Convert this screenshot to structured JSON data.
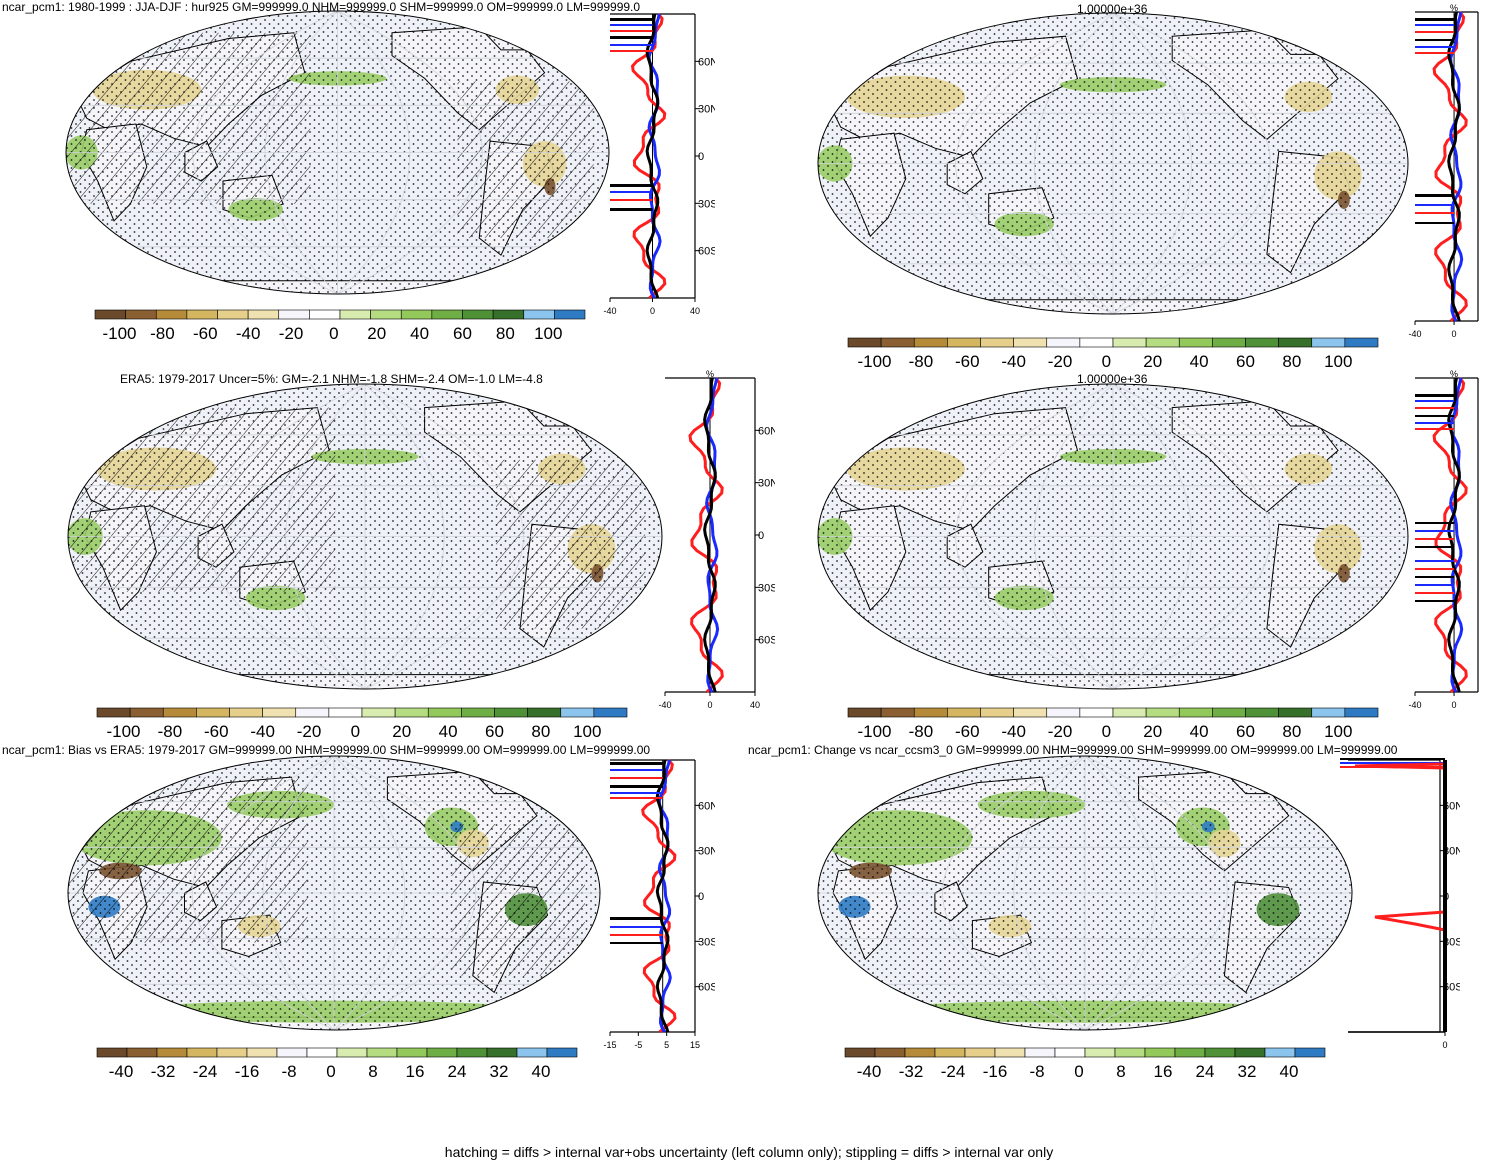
{
  "palette": {
    "bar11": [
      "#6b4a2b",
      "#8a5f32",
      "#b58b3a",
      "#d4b560",
      "#e6cf8a",
      "#f0e2b0",
      "#f5f5fb",
      "#ffffff",
      "#d8ecb0",
      "#b5dc80",
      "#93c85a",
      "#6fae45",
      "#4f9136",
      "#37702a",
      "#8bc4ec",
      "#2e7bc4"
    ],
    "map": {
      "ocean": "#eef1f7",
      "land": "#f4f4f9",
      "tan": "#e6d596",
      "brown": "#7a5230",
      "green": "#99cc66",
      "dgreen": "#4f8f3a",
      "blue": "#2e7bc4"
    },
    "lines": {
      "red": "#ff1e1e",
      "blue": "#1a2aff",
      "black": "#000000",
      "purple": "#8b1fa8"
    }
  },
  "panels": [
    {
      "id": "p1",
      "title": "ncar_pcm1: 1980-1999 : JJA-DJF : hur925 GM=999999.0 NHM=999999.0 SHM=999999.0 OM=999999.0 LM=999999.0",
      "lat_ticks": [
        "60N",
        "30N",
        "0",
        "30S",
        "60S"
      ],
      "x_ticks": [
        "-40",
        "0",
        "40"
      ],
      "pct_label": "",
      "cbar_labels": [
        "-100",
        "-80",
        "-60",
        "-40",
        "-20",
        "0",
        "20",
        "40",
        "60",
        "80",
        "100"
      ]
    },
    {
      "id": "p2",
      "title": "1.00000e+36",
      "lat_ticks": [],
      "x_ticks": [
        "-40",
        "0"
      ],
      "pct_label": "%",
      "cbar_labels": [
        "-100",
        "-80",
        "-60",
        "-40",
        "-20",
        "0",
        "20",
        "40",
        "60",
        "80",
        "100"
      ]
    },
    {
      "id": "p3",
      "title": "ERA5: 1979-2017 Uncer=5%: GM=-2.1 NHM=-1.8 SHM=-2.4 OM=-1.0 LM=-4.8",
      "lat_ticks": [
        "60N",
        "30N",
        "0",
        "30S",
        "60S"
      ],
      "x_ticks": [
        "-40",
        "0",
        "40"
      ],
      "pct_label": "%",
      "cbar_labels": [
        "-100",
        "-80",
        "-60",
        "-40",
        "-20",
        "0",
        "20",
        "40",
        "60",
        "80",
        "100"
      ]
    },
    {
      "id": "p4",
      "title": "1.00000e+36",
      "lat_ticks": [],
      "x_ticks": [
        "-40",
        "0"
      ],
      "pct_label": "%",
      "cbar_labels": [
        "-100",
        "-80",
        "-60",
        "-40",
        "-20",
        "0",
        "20",
        "40",
        "60",
        "80",
        "100"
      ]
    },
    {
      "id": "p5",
      "title": "ncar_pcm1: Bias vs ERA5: 1979-2017 GM=999999.00 NHM=999999.00 SHM=999999.00 OM=999999.00 LM=999999.00",
      "lat_ticks": [
        "60N",
        "30N",
        "0",
        "30S",
        "60S"
      ],
      "x_ticks": [
        "-15",
        "-5",
        "5",
        "15"
      ],
      "pct_label": "",
      "cbar_labels": [
        "-40",
        "-32",
        "-24",
        "-16",
        "-8",
        "0",
        "8",
        "16",
        "24",
        "32",
        "40"
      ]
    },
    {
      "id": "p6",
      "title": "ncar_pcm1: Change vs ncar_ccsm3_0 GM=999999.00 NHM=999999.00 SHM=999999.00 OM=999999.00 LM=999999.00",
      "lat_ticks": [
        "60N",
        "30N",
        "0",
        "30S",
        "60S"
      ],
      "x_ticks": [
        "0"
      ],
      "pct_label": "",
      "cbar_labels": [
        "-40",
        "-32",
        "-24",
        "-16",
        "-8",
        "0",
        "8",
        "16",
        "24",
        "32",
        "40"
      ]
    }
  ],
  "footer": "hatching = diffs > internal var+obs uncertainty (left column only); stippling = diffs > internal var only"
}
